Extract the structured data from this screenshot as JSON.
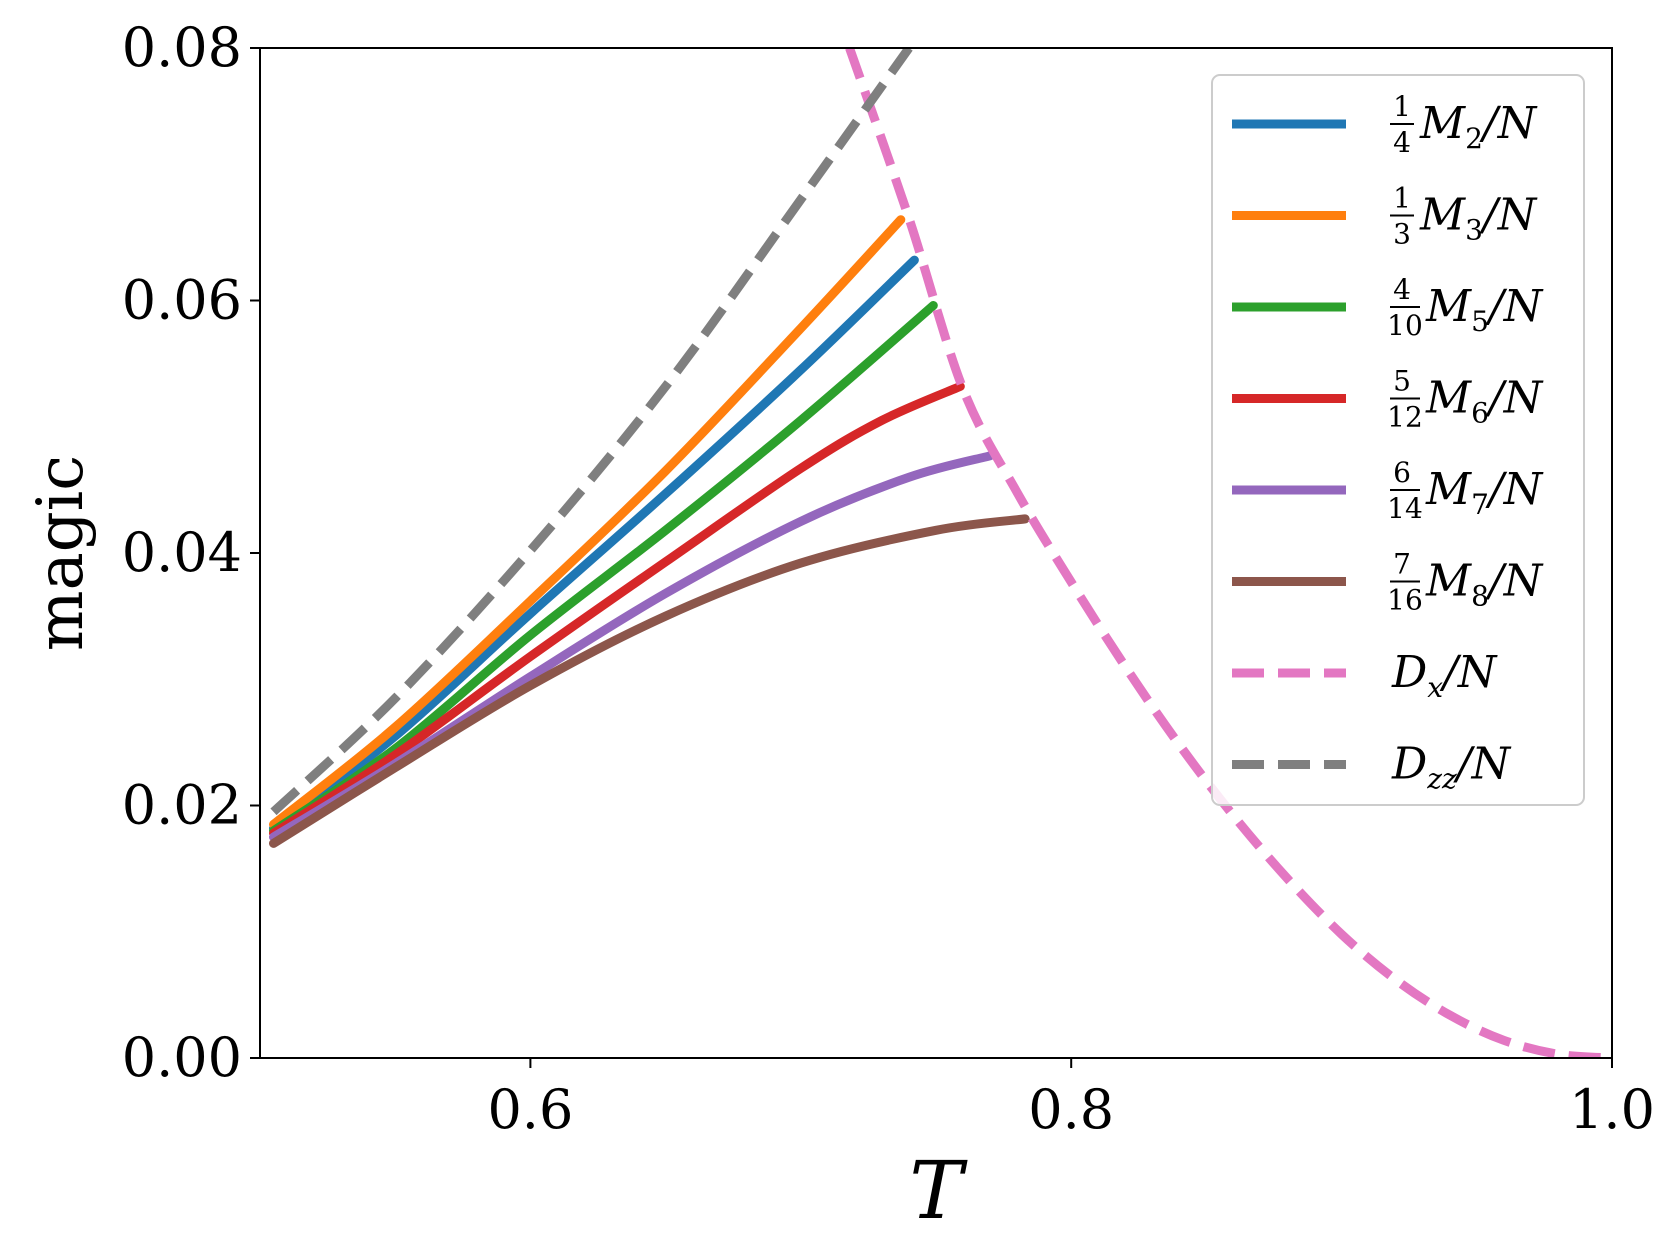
{
  "chart_data": {
    "type": "line",
    "xlabel": "T",
    "ylabel": "magic",
    "xlim": [
      0.5,
      1.0
    ],
    "ylim": [
      0.0,
      0.08
    ],
    "xticks": [
      0.6,
      0.8,
      1.0
    ],
    "xtick_labels": [
      "0.6",
      "0.8",
      "1.0"
    ],
    "yticks": [
      0.0,
      0.02,
      0.04,
      0.06,
      0.08
    ],
    "ytick_labels": [
      "0.00",
      "0.02",
      "0.04",
      "0.06",
      "0.08"
    ],
    "legend_position": "top-right",
    "series": [
      {
        "name": "1/4 M2/N",
        "coef_num": "1",
        "coef_den": "4",
        "label_main": "M",
        "label_sub": "2",
        "label_tail": "/N",
        "color": "#1f77b4",
        "style": "solid",
        "x": [
          0.505,
          0.55,
          0.6,
          0.65,
          0.7,
          0.742
        ],
        "y": [
          0.0182,
          0.0255,
          0.0352,
          0.0447,
          0.0545,
          0.0632
        ]
      },
      {
        "name": "1/3 M3/N",
        "coef_num": "1",
        "coef_den": "3",
        "label_main": "M",
        "label_sub": "3",
        "label_tail": "/N",
        "color": "#ff7f0e",
        "style": "solid",
        "x": [
          0.505,
          0.55,
          0.6,
          0.65,
          0.7,
          0.737
        ],
        "y": [
          0.0185,
          0.0262,
          0.0362,
          0.0465,
          0.0578,
          0.0664
        ]
      },
      {
        "name": "4/10 M5/N",
        "coef_num": "4",
        "coef_den": "10",
        "label_main": "M",
        "label_sub": "5",
        "label_tail": "/N",
        "color": "#2ca02c",
        "style": "solid",
        "x": [
          0.505,
          0.55,
          0.6,
          0.65,
          0.7,
          0.749
        ],
        "y": [
          0.018,
          0.0245,
          0.0335,
          0.0418,
          0.0505,
          0.0596
        ]
      },
      {
        "name": "5/12 M6/N",
        "coef_num": "5",
        "coef_den": "12",
        "label_main": "M",
        "label_sub": "6",
        "label_tail": "/N",
        "color": "#d62728",
        "style": "solid",
        "x": [
          0.505,
          0.55,
          0.6,
          0.65,
          0.7,
          0.73,
          0.759
        ],
        "y": [
          0.0178,
          0.024,
          0.0318,
          0.0393,
          0.0467,
          0.0505,
          0.0532
        ]
      },
      {
        "name": "6/14 M7/N",
        "coef_num": "6",
        "coef_den": "14",
        "label_main": "M",
        "label_sub": "7",
        "label_tail": "/N",
        "color": "#9467bd",
        "style": "solid",
        "x": [
          0.505,
          0.55,
          0.6,
          0.65,
          0.7,
          0.74,
          0.77
        ],
        "y": [
          0.0175,
          0.0233,
          0.0302,
          0.0368,
          0.0425,
          0.046,
          0.0477
        ]
      },
      {
        "name": "7/16 M8/N",
        "coef_num": "7",
        "coef_den": "16",
        "label_main": "M",
        "label_sub": "8",
        "label_tail": "/N",
        "color": "#8c564b",
        "style": "solid",
        "x": [
          0.505,
          0.55,
          0.6,
          0.65,
          0.7,
          0.75,
          0.783
        ],
        "y": [
          0.017,
          0.023,
          0.0295,
          0.035,
          0.0392,
          0.0418,
          0.0427
        ]
      },
      {
        "name": "Dx/N",
        "coef_num": "",
        "coef_den": "",
        "label_main": "D",
        "label_sub": "x",
        "label_tail": "/N",
        "color": "#e377c2",
        "style": "dashed",
        "x": [
          0.718,
          0.74,
          0.76,
          0.78,
          0.8,
          0.82,
          0.84,
          0.86,
          0.88,
          0.9,
          0.92,
          0.94,
          0.96,
          0.98,
          1.0
        ],
        "y": [
          0.08,
          0.0665,
          0.053,
          0.0448,
          0.0377,
          0.031,
          0.0248,
          0.0192,
          0.0142,
          0.0098,
          0.0062,
          0.0034,
          0.0014,
          0.0003,
          0.0
        ]
      },
      {
        "name": "Dzz/N",
        "coef_num": "",
        "coef_den": "",
        "label_main": "D",
        "label_sub": "zz",
        "label_tail": "/N",
        "color": "#7f7f7f",
        "style": "dashed",
        "x": [
          0.505,
          0.55,
          0.6,
          0.65,
          0.7,
          0.74
        ],
        "y": [
          0.0195,
          0.0285,
          0.0402,
          0.0532,
          0.068,
          0.08
        ]
      }
    ]
  }
}
